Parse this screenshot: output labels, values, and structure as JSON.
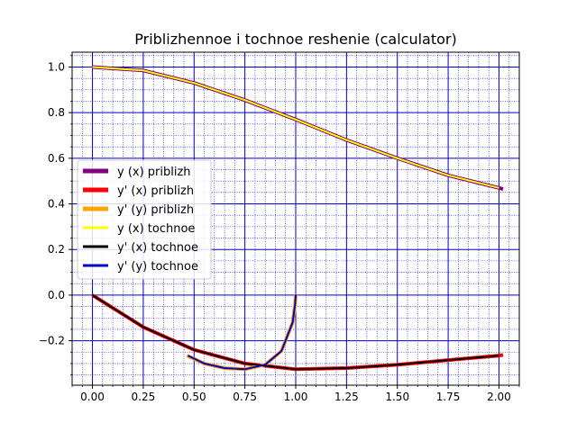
{
  "chart_data": {
    "type": "line",
    "title": "Priblizhennoe i tochnoe reshenie (calculator)",
    "xlabel": "",
    "ylabel": "",
    "xlim": [
      -0.1,
      2.1
    ],
    "ylim": [
      -0.395,
      1.065
    ],
    "xticks": [
      0.0,
      0.25,
      0.5,
      0.75,
      1.0,
      1.25,
      1.5,
      1.75,
      2.0
    ],
    "xtick_labels": [
      "0.00",
      "0.25",
      "0.50",
      "0.75",
      "1.00",
      "1.25",
      "1.50",
      "1.75",
      "2.00"
    ],
    "yticks": [
      -0.2,
      0.0,
      0.2,
      0.4,
      0.6,
      0.8,
      1.0
    ],
    "ytick_labels": [
      "−0.2",
      "0.0",
      "0.2",
      "0.4",
      "0.6",
      "0.8",
      "1.0"
    ],
    "grid": "major solid blue lines, minor dotted blue lines",
    "legend_position": "center-left",
    "series": [
      {
        "name": "y (x) priblizh",
        "color": "#800080",
        "linewidth": 4,
        "x": [
          0.0,
          0.25,
          0.5,
          0.75,
          1.0,
          1.25,
          1.5,
          1.75,
          2.0,
          2.02
        ],
        "y": [
          1.0,
          0.985,
          0.93,
          0.855,
          0.77,
          0.68,
          0.6,
          0.525,
          0.47,
          0.465
        ]
      },
      {
        "name": "y' (x) priblizh",
        "color": "#ff0000",
        "linewidth": 4,
        "x": [
          0.0,
          0.25,
          0.5,
          0.75,
          1.0,
          1.25,
          1.5,
          1.75,
          2.0,
          2.02
        ],
        "y": [
          0.0,
          -0.14,
          -0.24,
          -0.3,
          -0.325,
          -0.32,
          -0.305,
          -0.285,
          -0.265,
          -0.262
        ]
      },
      {
        "name": "y' (y) priblizh",
        "color": "#ffa500",
        "linewidth": 4,
        "x": [
          0.465,
          0.55,
          0.65,
          0.75,
          0.85,
          0.93,
          0.985,
          0.997,
          1.0
        ],
        "y": [
          -0.265,
          -0.3,
          -0.32,
          -0.325,
          -0.305,
          -0.245,
          -0.12,
          -0.04,
          0.0
        ]
      },
      {
        "name": "y (x) tochnoe",
        "color": "#ffff00",
        "linewidth": 2,
        "x": [
          0.0,
          0.25,
          0.5,
          0.75,
          1.0,
          1.25,
          1.5,
          1.75,
          2.0
        ],
        "y": [
          1.0,
          0.985,
          0.93,
          0.855,
          0.77,
          0.68,
          0.6,
          0.525,
          0.47
        ]
      },
      {
        "name": "y' (x) tochnoe",
        "color": "#000000",
        "linewidth": 2,
        "x": [
          0.0,
          0.25,
          0.5,
          0.75,
          1.0,
          1.25,
          1.5,
          1.75,
          2.0
        ],
        "y": [
          0.0,
          -0.14,
          -0.24,
          -0.3,
          -0.325,
          -0.32,
          -0.305,
          -0.285,
          -0.265
        ]
      },
      {
        "name": "y' (y) tochnoe",
        "color": "#0000cd",
        "linewidth": 2,
        "x": [
          0.47,
          0.55,
          0.65,
          0.75,
          0.85,
          0.93,
          0.985,
          0.997,
          1.0
        ],
        "y": [
          -0.265,
          -0.3,
          -0.32,
          -0.325,
          -0.305,
          -0.245,
          -0.12,
          -0.04,
          0.0
        ]
      }
    ]
  }
}
